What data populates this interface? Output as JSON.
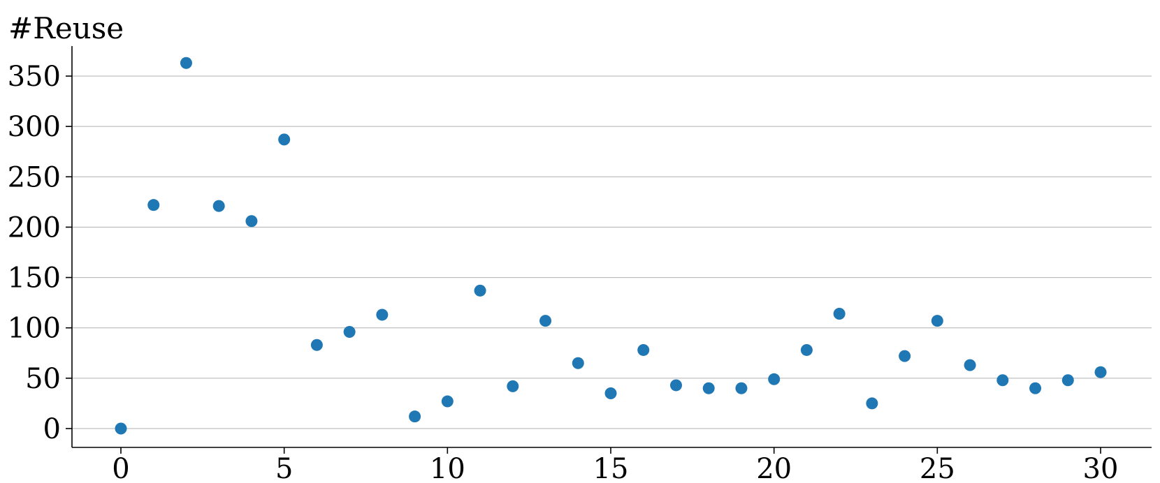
{
  "chart_data": {
    "type": "scatter",
    "title": "",
    "xlabel": "",
    "ylabel": "#Reuse",
    "xlim": [
      -1.5,
      31.5
    ],
    "ylim": [
      -18,
      380
    ],
    "xticks": [
      0,
      5,
      10,
      15,
      20,
      25,
      30
    ],
    "xtick_labels": [
      "0",
      "5",
      "10",
      "15",
      "20",
      "25",
      "30"
    ],
    "yticks": [
      0,
      50,
      100,
      150,
      200,
      250,
      300,
      350
    ],
    "ytick_labels": [
      "0",
      "50",
      "100",
      "150",
      "200",
      "250",
      "300",
      "350"
    ],
    "grid": "horizontal",
    "legend": "none",
    "series": [
      {
        "x": [
          0,
          1,
          2,
          3,
          4,
          5,
          6,
          7,
          8,
          9,
          10,
          11,
          12,
          13,
          14,
          15,
          16,
          17,
          18,
          19,
          20,
          21,
          22,
          23,
          24,
          25,
          26,
          27,
          28,
          29,
          30
        ],
        "y": [
          0,
          222,
          363,
          221,
          206,
          287,
          83,
          96,
          113,
          12,
          27,
          137,
          42,
          107,
          65,
          35,
          78,
          43,
          40,
          40,
          49,
          78,
          114,
          25,
          72,
          107,
          63,
          48,
          40,
          48,
          56
        ],
        "color": "#1f77b4"
      }
    ]
  }
}
